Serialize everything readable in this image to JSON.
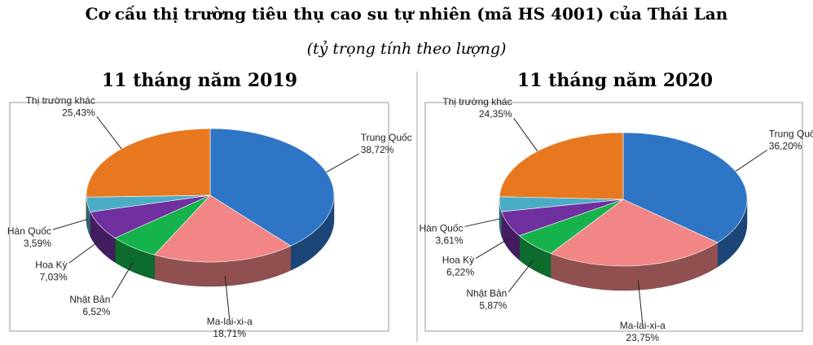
{
  "title": "Cơ cấu  thị trường tiêu thụ cao su tự nhiên (mã HS 4001) của Thái Lan",
  "subtitle": "(tỷ trọng tính theo lượng)",
  "chart_data": [
    {
      "type": "pie",
      "title": "11 tháng năm 2019",
      "categories": [
        "Trung Quốc",
        "Ma-lai-xi-a",
        "Nhật Bản",
        "Hoa Kỳ",
        "Hàn Quốc",
        "Thị trường khác"
      ],
      "values": [
        38.72,
        18.71,
        6.52,
        7.03,
        3.59,
        25.43
      ],
      "value_labels": [
        "38,72%",
        "18,71%",
        "6,52%",
        "7,03%",
        "3,59%",
        "25,43%"
      ],
      "colors": [
        "#2e75c6",
        "#f28585",
        "#16b24b",
        "#7030a0",
        "#4bacc6",
        "#e8781f"
      ]
    },
    {
      "type": "pie",
      "title": "11 tháng năm 2020",
      "categories": [
        "Trung Quốc",
        "Ma-lai-xi-a",
        "Nhật Bản",
        "Hoa Kỳ",
        "Hàn Quốc",
        "Thị trường khác"
      ],
      "values": [
        36.2,
        23.75,
        5.87,
        6.22,
        3.61,
        24.35
      ],
      "value_labels": [
        "36,20%",
        "23,75%",
        "5,87%",
        "6,22%",
        "3,61%",
        "24,35%"
      ],
      "colors": [
        "#2e75c6",
        "#f28585",
        "#16b24b",
        "#7030a0",
        "#4bacc6",
        "#e8781f"
      ]
    }
  ]
}
